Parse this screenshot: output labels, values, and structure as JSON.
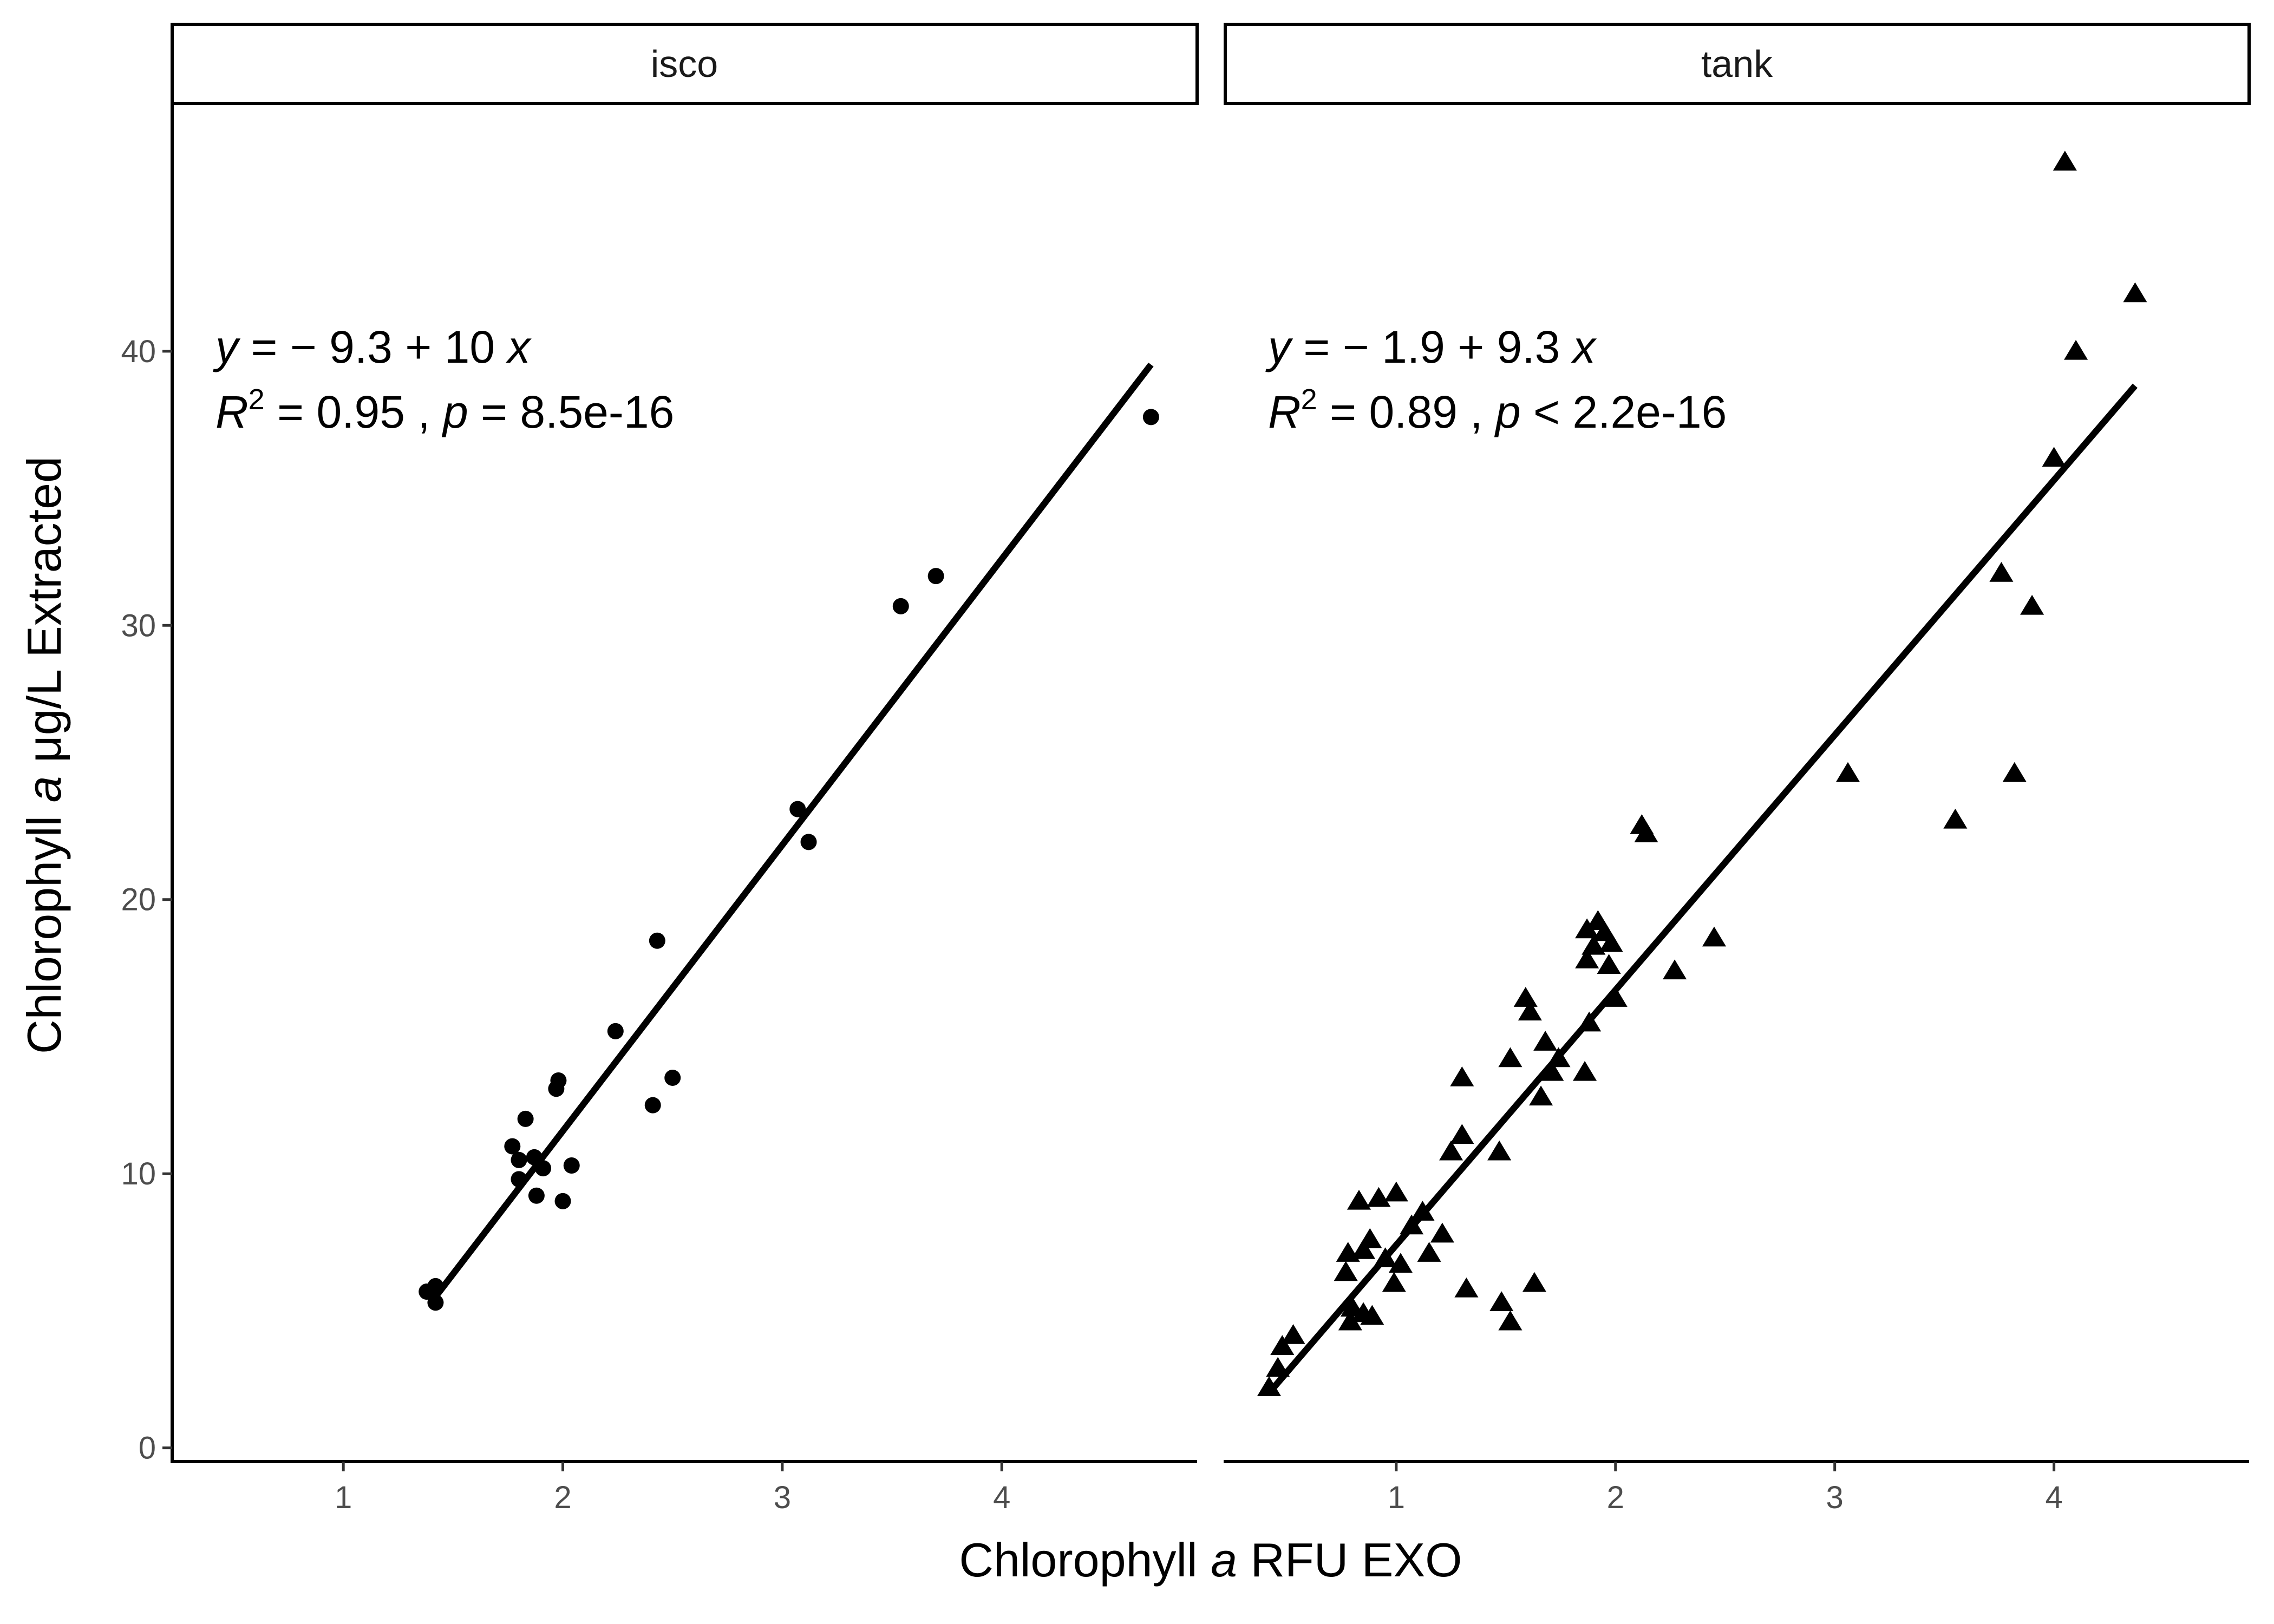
{
  "chart_data": {
    "type": "scatter",
    "xlabel": {
      "prefix": "Chlorophyll ",
      "italic": "a",
      "suffix": " RFU EXO"
    },
    "ylabel": {
      "prefix": "Chlorophyll ",
      "italic": "a",
      "suffix": " μg/L Extracted"
    },
    "xlim": [
      0.22,
      4.89
    ],
    "ylim": [
      -0.5,
      49
    ],
    "x_ticks": [
      1,
      2,
      3,
      4
    ],
    "y_ticks": [
      0,
      10,
      20,
      30,
      40
    ],
    "grid": false,
    "panels": [
      {
        "strip": "isco",
        "marker": "circle",
        "equation": {
          "y": "y",
          "rhs": " = − 9.3 + 10 ",
          "x": "x"
        },
        "stats": {
          "r": "R",
          "sup": "2",
          "r2_text": " = 0.95 ,  ",
          "p": "p",
          "p_text": " = 8.5e-16"
        },
        "fit": {
          "intercept": -9.3,
          "slope": 10.43,
          "x_range": [
            1.42,
            4.68
          ]
        },
        "points": [
          [
            1.38,
            5.7
          ],
          [
            1.42,
            5.9
          ],
          [
            1.42,
            5.3
          ],
          [
            1.77,
            11.0
          ],
          [
            1.8,
            10.5
          ],
          [
            1.8,
            9.8
          ],
          [
            1.83,
            12.0
          ],
          [
            1.87,
            10.6
          ],
          [
            1.88,
            9.2
          ],
          [
            1.91,
            10.2
          ],
          [
            1.97,
            13.1
          ],
          [
            1.98,
            13.4
          ],
          [
            2.0,
            9.0
          ],
          [
            2.04,
            10.3
          ],
          [
            2.24,
            15.2
          ],
          [
            2.41,
            12.5
          ],
          [
            2.43,
            18.5
          ],
          [
            2.5,
            13.5
          ],
          [
            3.07,
            23.3
          ],
          [
            3.12,
            22.1
          ],
          [
            3.54,
            30.7
          ],
          [
            3.7,
            31.8
          ],
          [
            4.68,
            37.6
          ]
        ]
      },
      {
        "strip": "tank",
        "marker": "triangle",
        "equation": {
          "y": "y",
          "rhs": " = − 1.9 + 9.3 ",
          "x": "x"
        },
        "stats": {
          "r": "R",
          "sup": "2",
          "r2_text": " = 0.89 ,  ",
          "p": "p",
          "p_text": " < 2.2e-16"
        },
        "fit": {
          "intercept": -1.9,
          "slope": 9.3,
          "x_range": [
            0.42,
            4.37
          ]
        },
        "points": [
          [
            0.42,
            2.2
          ],
          [
            0.46,
            2.9
          ],
          [
            0.48,
            3.7
          ],
          [
            0.53,
            4.1
          ],
          [
            0.77,
            6.4
          ],
          [
            0.78,
            7.1
          ],
          [
            0.79,
            4.6
          ],
          [
            0.8,
            5.1
          ],
          [
            0.83,
            9.0
          ],
          [
            0.85,
            7.2
          ],
          [
            0.85,
            4.9
          ],
          [
            0.88,
            7.6
          ],
          [
            0.89,
            4.8
          ],
          [
            0.92,
            9.1
          ],
          [
            0.95,
            6.9
          ],
          [
            1.0,
            9.3
          ],
          [
            0.99,
            6.0
          ],
          [
            1.02,
            6.7
          ],
          [
            1.07,
            8.1
          ],
          [
            1.12,
            8.6
          ],
          [
            1.15,
            7.1
          ],
          [
            1.21,
            7.8
          ],
          [
            1.25,
            10.8
          ],
          [
            1.3,
            11.4
          ],
          [
            1.3,
            13.5
          ],
          [
            1.32,
            5.8
          ],
          [
            1.47,
            10.8
          ],
          [
            1.48,
            5.3
          ],
          [
            1.52,
            4.6
          ],
          [
            1.52,
            14.2
          ],
          [
            1.59,
            16.4
          ],
          [
            1.61,
            15.9
          ],
          [
            1.63,
            6.0
          ],
          [
            1.66,
            12.8
          ],
          [
            1.68,
            14.8
          ],
          [
            1.71,
            13.7
          ],
          [
            1.74,
            14.2
          ],
          [
            1.86,
            13.7
          ],
          [
            1.87,
            17.8
          ],
          [
            1.87,
            18.9
          ],
          [
            1.88,
            15.5
          ],
          [
            1.9,
            18.3
          ],
          [
            1.92,
            19.2
          ],
          [
            1.95,
            18.8
          ],
          [
            1.97,
            17.6
          ],
          [
            1.98,
            18.4
          ],
          [
            2.0,
            16.4
          ],
          [
            2.12,
            22.7
          ],
          [
            2.14,
            22.4
          ],
          [
            2.27,
            17.4
          ],
          [
            2.45,
            18.6
          ],
          [
            3.06,
            24.6
          ],
          [
            3.55,
            22.9
          ],
          [
            3.76,
            31.9
          ],
          [
            3.82,
            24.6
          ],
          [
            3.9,
            30.7
          ],
          [
            4.0,
            36.1
          ],
          [
            4.05,
            46.9
          ],
          [
            4.1,
            40.0
          ],
          [
            4.37,
            42.1
          ]
        ]
      }
    ]
  }
}
